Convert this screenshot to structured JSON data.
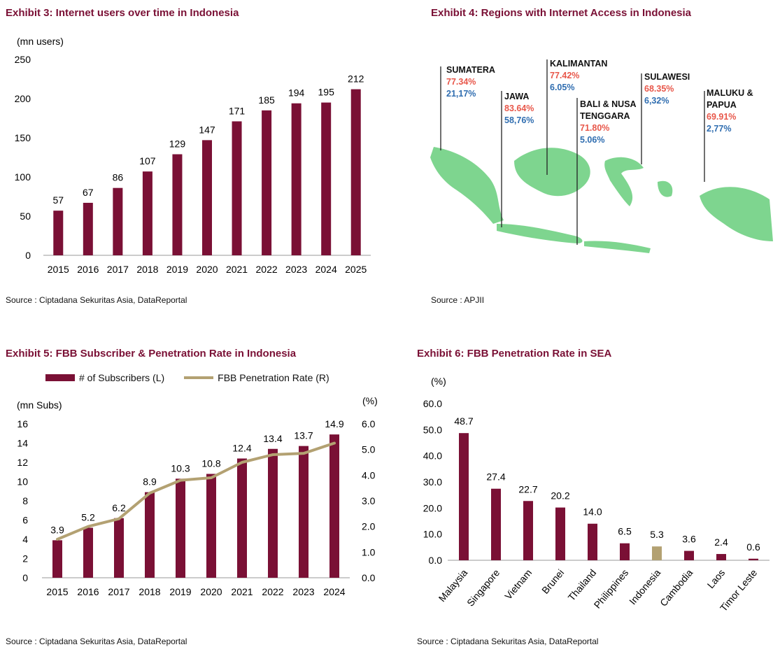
{
  "colors": {
    "bar": "#7a1035",
    "line": "#b3a172",
    "highlight": "#b3a172",
    "map": "#7ed58f",
    "title": "#7a1035",
    "pct": "#e8574a",
    "share": "#2f6db0"
  },
  "exhibit3": {
    "title": "Exhibit 3: Internet users over time in Indonesia",
    "source": "Source : Ciptadana Sekuritas Asia, DataReportal"
  },
  "exhibit4": {
    "title": "Exhibit 4: Regions with Internet Access in Indonesia",
    "source": "Source : APJII",
    "regions": [
      {
        "name": "SUMATERA",
        "pct": "77.34%",
        "share": "21,17%"
      },
      {
        "name": "JAWA",
        "pct": "83.64%",
        "share": "58,76%"
      },
      {
        "name": "KALIMANTAN",
        "pct": "77.42%",
        "share": "6.05%"
      },
      {
        "name": "BALI & NUSA",
        "name2": "TENGGARA",
        "pct": "71.80%",
        "share": "5.06%"
      },
      {
        "name": "SULAWESI",
        "pct": "68.35%",
        "share": "6,32%"
      },
      {
        "name": "MALUKU &",
        "name2": "PAPUA",
        "pct": "69.91%",
        "share": "2,77%"
      }
    ]
  },
  "exhibit5": {
    "title": "Exhibit 5: FBB Subscriber & Penetration Rate in Indonesia",
    "source": "Source : Ciptadana Sekuritas Asia, DataReportal",
    "legend_bar": "# of Subscribers (L)",
    "legend_line": "FBB Penetration Rate (R)"
  },
  "exhibit6": {
    "title": "Exhibit 6: FBB Penetration Rate in SEA",
    "source": "Source : Ciptadana Sekuritas Asia, DataReportal"
  },
  "chart_data": [
    {
      "id": "ex3",
      "type": "bar",
      "title": "Exhibit 3: Internet users over time in Indonesia",
      "ylabel": "(mn users)",
      "categories": [
        "2015",
        "2016",
        "2017",
        "2018",
        "2019",
        "2020",
        "2021",
        "2022",
        "2023",
        "2024",
        "2025"
      ],
      "values": [
        57,
        67,
        86,
        107,
        129,
        147,
        171,
        185,
        194,
        195,
        212
      ],
      "ylim": [
        0,
        250
      ],
      "yticks": [
        "0",
        "50",
        "100",
        "150",
        "200",
        "250"
      ]
    },
    {
      "id": "ex5",
      "type": "bar+line",
      "title": "Exhibit 5: FBB Subscriber & Penetration Rate in Indonesia",
      "ylabel": "(mn Subs)",
      "y2label": "(%)",
      "categories": [
        "2015",
        "2016",
        "2017",
        "2018",
        "2019",
        "2020",
        "2021",
        "2022",
        "2023",
        "2024"
      ],
      "series": [
        {
          "name": "# of Subscribers (L)",
          "values": [
            3.9,
            5.2,
            6.2,
            8.9,
            10.3,
            10.8,
            12.4,
            13.4,
            13.7,
            14.9
          ],
          "labels": [
            "3.9",
            "5.2",
            "6.2",
            "8.9",
            "10.3",
            "10.8",
            "12.4",
            "13.4",
            "13.7",
            "14.9"
          ]
        },
        {
          "name": "FBB Penetration Rate (R)",
          "values": [
            1.5,
            2.0,
            2.3,
            3.3,
            3.8,
            3.9,
            4.5,
            4.8,
            4.85,
            5.25
          ]
        }
      ],
      "ylim": [
        0,
        16
      ],
      "y2lim": [
        0,
        6
      ],
      "yticks": [
        "0",
        "2",
        "4",
        "6",
        "8",
        "10",
        "12",
        "14",
        "16"
      ],
      "y2ticks": [
        "0.0",
        "1.0",
        "2.0",
        "3.0",
        "4.0",
        "5.0",
        "6.0"
      ]
    },
    {
      "id": "ex6",
      "type": "bar",
      "title": "Exhibit 6: FBB Penetration Rate in SEA",
      "ylabel": "(%)",
      "categories": [
        "Malaysia",
        "Singapore",
        "Vietnam",
        "Brunei",
        "Thailand",
        "Philippines",
        "Indonesia",
        "Cambodia",
        "Laos",
        "Timor Leste"
      ],
      "values": [
        48.7,
        27.4,
        22.7,
        20.2,
        14.0,
        6.5,
        5.3,
        3.6,
        2.4,
        0.6
      ],
      "labels": [
        "48.7",
        "27.4",
        "22.7",
        "20.2",
        "14.0",
        "6.5",
        "5.3",
        "3.6",
        "2.4",
        "0.6"
      ],
      "highlight": "Indonesia",
      "ylim": [
        0,
        60
      ],
      "yticks": [
        "0.0",
        "10.0",
        "20.0",
        "30.0",
        "40.0",
        "50.0",
        "60.0"
      ]
    }
  ]
}
